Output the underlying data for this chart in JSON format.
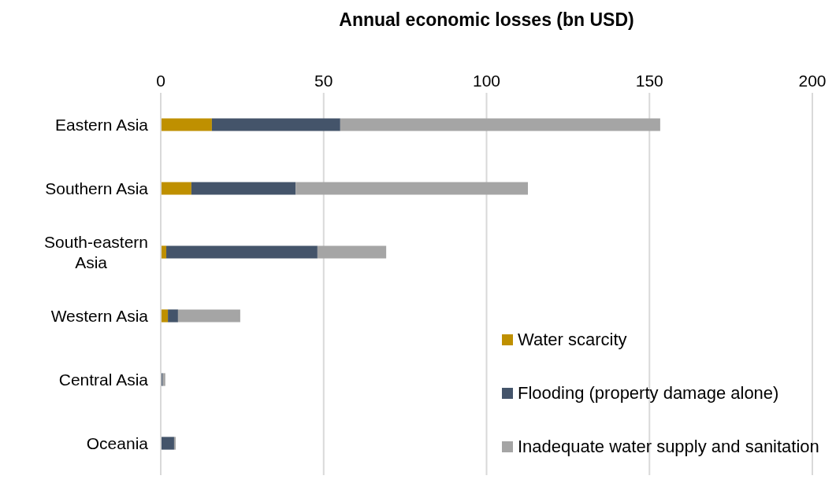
{
  "chart_data": {
    "type": "bar",
    "orientation": "horizontal",
    "stacked": true,
    "title": "Annual economic losses (bn USD)",
    "categories": [
      "Eastern Asia",
      "Southern Asia",
      "South-eastern Asia",
      "Western Asia",
      "Central Asia",
      "Oceania"
    ],
    "series": [
      {
        "name": "Water scarcity",
        "color": "#bf9000",
        "values": [
          15.7,
          9.4,
          1.7,
          2.2,
          0.2,
          0
        ]
      },
      {
        "name": "Flooding (property damage alone)",
        "color": "#44546a",
        "values": [
          39.4,
          32,
          46.4,
          3.1,
          0.4,
          4.1
        ]
      },
      {
        "name": "Inadequate water supply and sanitation",
        "color": "#a5a5a5",
        "values": [
          98.2,
          71.3,
          21.1,
          19.1,
          0.8,
          0.5
        ]
      }
    ],
    "xlim": [
      0,
      200
    ],
    "xticks": [
      0,
      50,
      100,
      150,
      200
    ],
    "grid": "x",
    "legend": "bottom right"
  }
}
